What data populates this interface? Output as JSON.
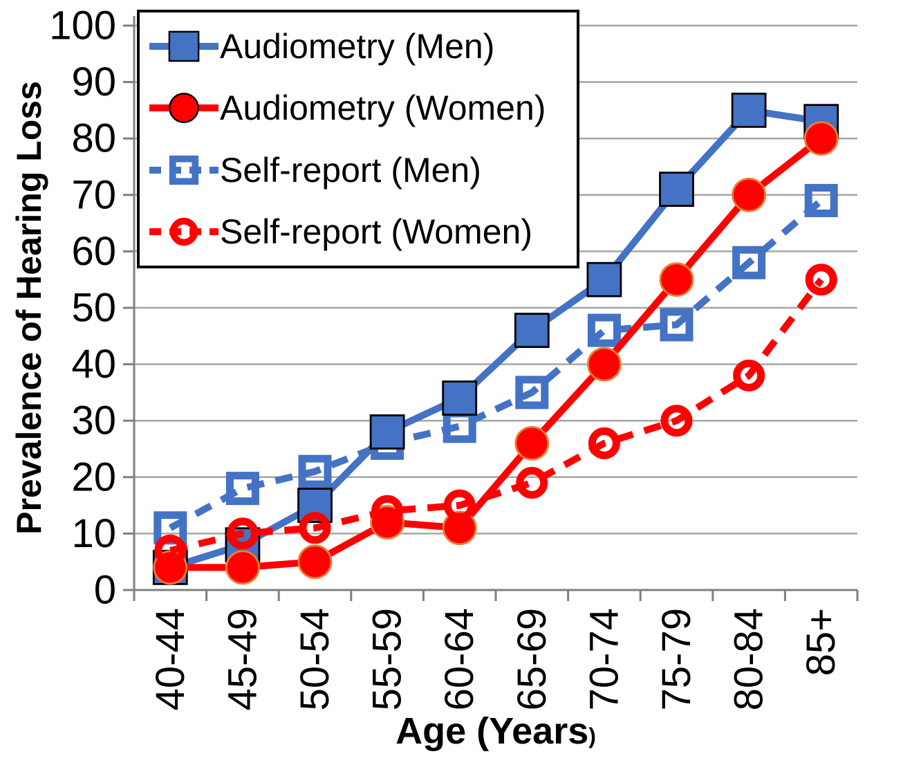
{
  "chart_data": {
    "type": "line",
    "title": "",
    "ylabel": "Prevalence of Hearing Loss",
    "xlabel": "Age (Years)",
    "xlabel_main": "Age (Years",
    "xlabel_paren": ")",
    "categories": [
      "40-44",
      "45-49",
      "50-54",
      "55-59",
      "60-64",
      "65-69",
      "70-74",
      "75-79",
      "80-84",
      "85+"
    ],
    "ylim": [
      0,
      100
    ],
    "ytick_step": 10,
    "ytick_labels": [
      "0",
      "10",
      "20",
      "30",
      "40",
      "50",
      "60",
      "70",
      "80",
      "90",
      "100"
    ],
    "grid": "horizontal-only",
    "legend_position": "top-left-inside",
    "colors": {
      "gridline": "#A6A6A6",
      "axis": "#7F7F7F",
      "text": "#000000",
      "background": "#FFFFFF",
      "blue": "#4472C4",
      "red": "#FF0000",
      "circle_border": "#ED7D31",
      "square_border": "#000000"
    },
    "series": [
      {
        "name": "Audiometry (Men)",
        "color": "#4472C4",
        "line": "solid",
        "marker": "filled-square",
        "marker_border": "#000000",
        "values": [
          4,
          8,
          15,
          28,
          34,
          46,
          55,
          71,
          85,
          83
        ]
      },
      {
        "name": "Audiometry (Women)",
        "color": "#FF0000",
        "line": "solid",
        "marker": "filled-circle",
        "marker_border": "#ED7D31",
        "values": [
          4,
          4,
          5,
          12,
          11,
          26,
          40,
          55,
          70,
          80
        ]
      },
      {
        "name": "Self-report (Men)",
        "color": "#4472C4",
        "line": "dashed",
        "marker": "open-square",
        "values": [
          11,
          18,
          21,
          26,
          29,
          35,
          46,
          47,
          58,
          69
        ]
      },
      {
        "name": "Self-report (Women)",
        "color": "#FF0000",
        "line": "dashed",
        "marker": "open-circle",
        "values": [
          7,
          10,
          11,
          14,
          15,
          19,
          26,
          30,
          38,
          55
        ]
      }
    ]
  }
}
